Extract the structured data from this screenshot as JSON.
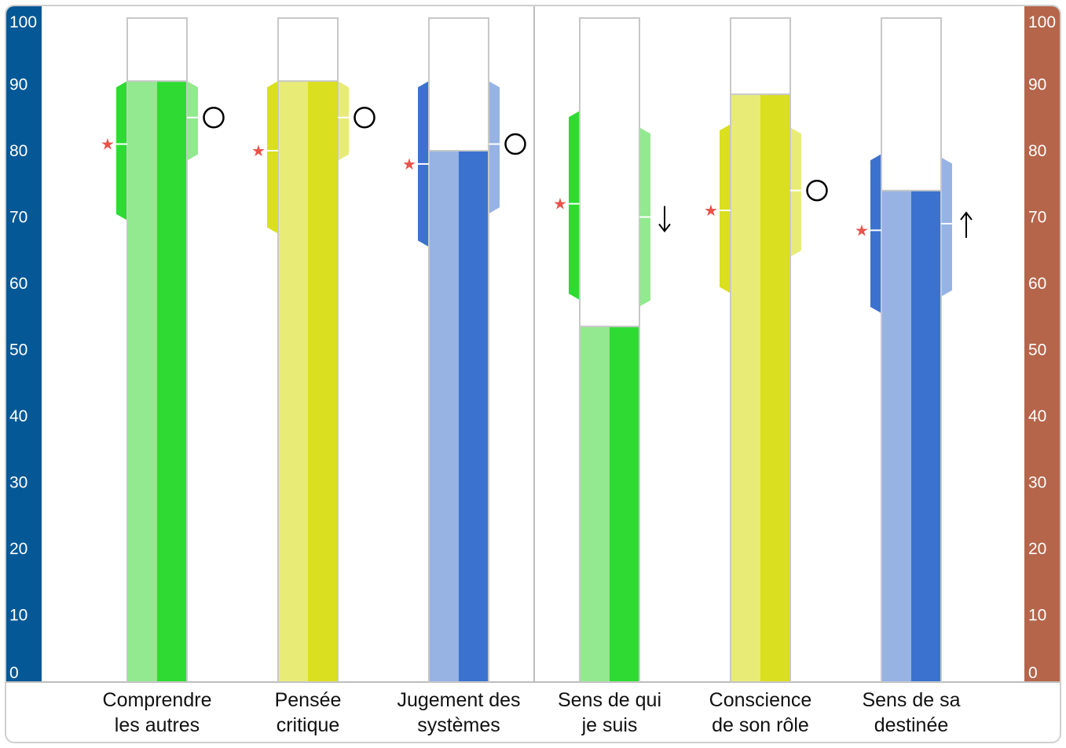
{
  "chart_data": {
    "type": "bar",
    "title": "",
    "xlabel": "",
    "ylabel": "",
    "ylim": [
      0,
      100
    ],
    "y_ticks": [
      "0",
      "10",
      "20",
      "30",
      "40",
      "50",
      "60",
      "70",
      "80",
      "90",
      "100"
    ],
    "grid": false,
    "legend": "none",
    "categories": [
      {
        "lines": [
          "Comprendre",
          "les autres"
        ],
        "value": 90.5,
        "band_low": 69.5,
        "band_high": 90.5,
        "right_band_low": 78.5,
        "right_band_high": 90.5,
        "star": 81,
        "right_mark": 85,
        "right_symbol": "circle",
        "light": "#92e98f",
        "dark": "#2fdb33"
      },
      {
        "lines": [
          "Pensée",
          "critique"
        ],
        "value": 90.5,
        "band_low": 67.5,
        "band_high": 90.5,
        "right_band_low": 78.5,
        "right_band_high": 90.5,
        "star": 80,
        "right_mark": 85,
        "right_symbol": "circle",
        "light": "#e8ec77",
        "dark": "#dadf1f"
      },
      {
        "lines": [
          "Jugement des",
          "systèmes"
        ],
        "value": 80,
        "band_low": 65.5,
        "band_high": 90.5,
        "right_band_low": 70.5,
        "right_band_high": 90.5,
        "star": 78,
        "right_mark": 81,
        "right_symbol": "circle",
        "light": "#96b3e4",
        "dark": "#3c72cf"
      },
      {
        "lines": [
          "Sens de qui",
          "je suis"
        ],
        "value": 53.5,
        "band_low": 57.5,
        "band_high": 86,
        "right_band_low": 56.5,
        "right_band_high": 83.5,
        "star": 72,
        "right_mark": 70,
        "right_symbol": "arrow-down",
        "light": "#92e98f",
        "dark": "#2fdb33"
      },
      {
        "lines": [
          "Conscience",
          "de son rôle"
        ],
        "value": 88.5,
        "band_low": 58.5,
        "band_high": 84,
        "right_band_low": 64,
        "right_band_high": 83.5,
        "star": 71,
        "right_mark": 74,
        "right_symbol": "circle",
        "light": "#e8ec77",
        "dark": "#dadf1f"
      },
      {
        "lines": [
          "Sens de sa",
          "destinée"
        ],
        "value": 74,
        "band_low": 55.5,
        "band_high": 79.5,
        "right_band_low": 58,
        "right_band_high": 79,
        "star": 68,
        "right_mark": 69,
        "right_symbol": "arrow-up",
        "light": "#96b3e4",
        "dark": "#3c72cf"
      }
    ],
    "colors": {
      "left_axis": "#045896",
      "right_axis": "#b5654a",
      "star": "#e8534a",
      "outline": "#c8c8c8",
      "divider": "#bdbdbd"
    }
  }
}
